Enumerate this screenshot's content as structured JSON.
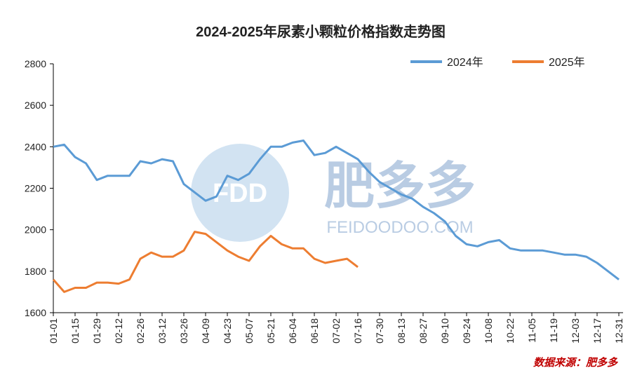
{
  "chart_data": {
    "type": "line",
    "title": "2024-2025年尿素小颗粒价格指数走势图",
    "source": "数据来源：肥多多",
    "watermark": {
      "logo": "FDD",
      "name": "肥多多",
      "url": "FEIDOODOO.COM"
    },
    "legend": "top-right",
    "grid": false,
    "ylim": [
      1600,
      2800
    ],
    "yticks": [
      1600,
      1800,
      2000,
      2200,
      2400,
      2600,
      2800
    ],
    "categories": [
      "01-01",
      null,
      "01-15",
      null,
      "01-29",
      null,
      "02-12",
      null,
      "02-26",
      null,
      "03-12",
      null,
      "03-26",
      null,
      "04-09",
      null,
      "04-23",
      null,
      "05-07",
      null,
      "05-21",
      null,
      "06-04",
      null,
      "06-18",
      null,
      "07-02",
      null,
      "07-16",
      null,
      "07-30",
      null,
      "08-13",
      null,
      "08-27",
      null,
      "09-10",
      null,
      "09-24",
      null,
      "10-08",
      null,
      "10-22",
      null,
      "11-05",
      null,
      "11-19",
      null,
      "12-03",
      null,
      "12-17",
      null,
      "12-31"
    ],
    "series": [
      {
        "name": "2024年",
        "color": "#5b9bd5",
        "values": [
          2400,
          2410,
          2350,
          2320,
          2240,
          2260,
          2260,
          2260,
          2330,
          2320,
          2340,
          2330,
          2220,
          2180,
          2140,
          2160,
          2260,
          2240,
          2270,
          2340,
          2400,
          2400,
          2420,
          2430,
          2360,
          2370,
          2400,
          2370,
          2340,
          2280,
          2230,
          2200,
          2170,
          2150,
          2110,
          2080,
          2040,
          1970,
          1930,
          1920,
          1940,
          1950,
          1910,
          1900,
          1900,
          1900,
          1890,
          1880,
          1880,
          1870,
          1840,
          1800,
          1760
        ]
      },
      {
        "name": "2025年",
        "color": "#ed7d31",
        "values": [
          1760,
          1700,
          1720,
          1720,
          1745,
          1745,
          1740,
          1760,
          1860,
          1890,
          1870,
          1870,
          1900,
          1990,
          1980,
          1940,
          1900,
          1870,
          1850,
          1920,
          1970,
          1930,
          1910,
          1910,
          1860,
          1840,
          1850,
          1860,
          1820,
          null,
          null,
          null,
          null,
          null,
          null,
          null,
          null,
          null,
          null,
          null,
          null,
          null,
          null,
          null,
          null,
          null,
          null,
          null,
          null,
          null,
          null,
          null,
          null
        ]
      }
    ]
  }
}
